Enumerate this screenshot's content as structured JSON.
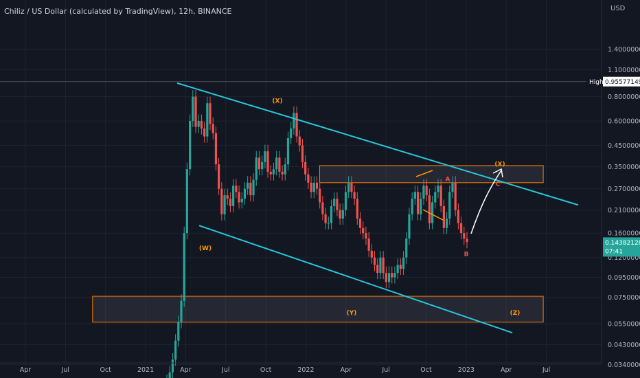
{
  "header": {
    "title": "Chiliz / US Dollar (calculated by TradingView), 12h, BINANCE"
  },
  "chart_data": {
    "type": "candlestick",
    "currency": "USD",
    "scale": "log",
    "ylim": [
      0.031,
      2.0
    ],
    "y_ticks": [
      "1.40000000",
      "1.10000000",
      "0.80000000",
      "0.60000000",
      "0.45000000",
      "0.35000000",
      "0.27000000",
      "0.21000000",
      "0.16000000",
      "0.12000000",
      "0.09500000",
      "0.07500000",
      "0.05500000",
      "0.04300000",
      "0.03400000"
    ],
    "x_ticks": [
      "Apr",
      "Jul",
      "Oct",
      "2021",
      "Apr",
      "Jul",
      "Oct",
      "2022",
      "Apr",
      "Jul",
      "Oct",
      "2023",
      "Apr",
      "Jul"
    ],
    "high_marker": {
      "label": "High",
      "value": "0.95577149"
    },
    "last_price": {
      "value": "0.14382128",
      "countdown": "07:41"
    },
    "colors": {
      "up": "#26a69a",
      "down": "#ef5350",
      "channel": "#26c6da",
      "zone": "#f57c00",
      "wave": "#ff9800",
      "label_red": "#ef5350",
      "arrow": "#ffffff",
      "high_bg": "#ffffff",
      "price_bg": "#26a69a"
    },
    "wave_labels": [
      {
        "text": "(X)",
        "color": "orange",
        "x": "2021-10",
        "y": 0.77
      },
      {
        "text": "(W)",
        "color": "orange",
        "x": "2021-05",
        "y": 0.135
      },
      {
        "text": "(Y)",
        "color": "orange",
        "x": "2022-04",
        "y": 0.063
      },
      {
        "text": "A",
        "color": "red",
        "x": "2022-11",
        "y": 0.305
      },
      {
        "text": "B",
        "color": "red",
        "x": "2022-12",
        "y": 0.126
      },
      {
        "text": "C",
        "color": "red",
        "x": "2023-02",
        "y": 0.288
      },
      {
        "text": "(X)",
        "color": "orange",
        "x": "2023-02",
        "y": 0.365
      },
      {
        "text": "(Z)",
        "color": "orange",
        "x": "2023-05",
        "y": 0.063
      }
    ],
    "zones": [
      {
        "price_low": 0.29,
        "price_high": 0.355,
        "from": "2022-01",
        "to": "2023-06"
      },
      {
        "price_low": 0.056,
        "price_high": 0.076,
        "from": "2020-08",
        "to": "2023-06"
      }
    ],
    "channel_upper": [
      {
        "x": "2021-03",
        "y": 0.955
      },
      {
        "x": "2023-07",
        "y": 0.25
      }
    ],
    "channel_lower": [
      {
        "x": "2021-05",
        "y": 0.175
      },
      {
        "x": "2023-05",
        "y": 0.048
      }
    ],
    "candles_close": [
      0.028,
      0.031,
      0.036,
      0.045,
      0.056,
      0.072,
      0.16,
      0.34,
      0.6,
      0.8,
      0.56,
      0.6,
      0.55,
      0.5,
      0.74,
      0.58,
      0.52,
      0.36,
      0.27,
      0.2,
      0.25,
      0.24,
      0.22,
      0.28,
      0.26,
      0.23,
      0.24,
      0.27,
      0.29,
      0.25,
      0.3,
      0.39,
      0.34,
      0.37,
      0.42,
      0.33,
      0.32,
      0.34,
      0.39,
      0.33,
      0.32,
      0.36,
      0.49,
      0.55,
      0.66,
      0.5,
      0.45,
      0.37,
      0.32,
      0.29,
      0.26,
      0.29,
      0.27,
      0.23,
      0.2,
      0.18,
      0.18,
      0.22,
      0.24,
      0.21,
      0.19,
      0.21,
      0.26,
      0.29,
      0.26,
      0.24,
      0.19,
      0.17,
      0.16,
      0.15,
      0.13,
      0.12,
      0.11,
      0.1,
      0.12,
      0.1,
      0.09,
      0.1,
      0.095,
      0.1,
      0.11,
      0.105,
      0.12,
      0.15,
      0.2,
      0.24,
      0.26,
      0.2,
      0.24,
      0.28,
      0.25,
      0.18,
      0.23,
      0.26,
      0.28,
      0.22,
      0.17,
      0.19,
      0.26,
      0.29,
      0.21,
      0.18,
      0.16,
      0.15,
      0.144
    ]
  }
}
